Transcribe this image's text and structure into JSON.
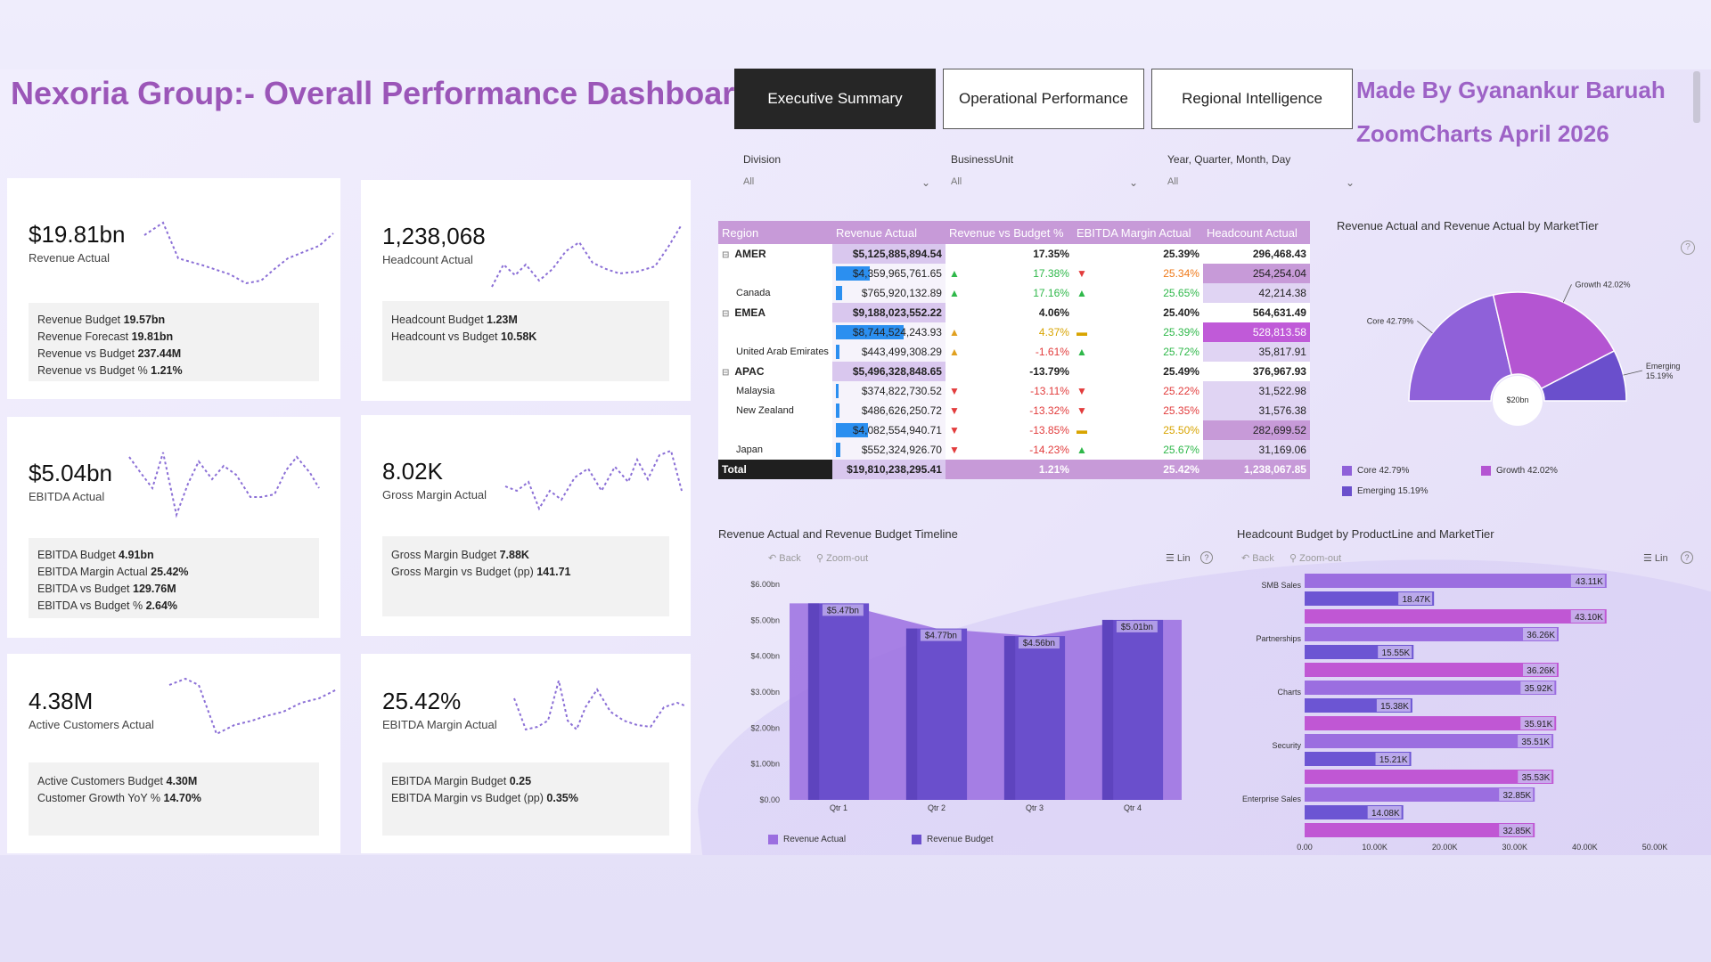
{
  "header": {
    "title": "Nexoria Group:- Overall Performance Dashboard",
    "tabs": [
      {
        "label": "Executive Summary",
        "active": true
      },
      {
        "label": "Operational Performance",
        "active": false
      },
      {
        "label": "Regional Intelligence",
        "active": false
      }
    ],
    "made_by": "Made By Gyanankur Baruah",
    "event": "ZoomCharts April 2026"
  },
  "slicers": [
    {
      "label": "Division",
      "value": "All"
    },
    {
      "label": "BusinessUnit",
      "value": "All"
    },
    {
      "label": "Year, Quarter, Month, Day",
      "value": "All"
    }
  ],
  "kpis": {
    "revenue": {
      "value": "$19.81bn",
      "label": "Revenue Actual",
      "details": [
        [
          "Revenue Budget ",
          "19.57bn"
        ],
        [
          "Revenue Forecast ",
          "19.81bn"
        ],
        [
          "Revenue vs Budget ",
          "237.44M"
        ],
        [
          "Revenue vs Budget % ",
          "1.21%"
        ]
      ]
    },
    "headcount": {
      "value": "1,238,068",
      "label": "Headcount Actual",
      "details": [
        [
          "Headcount Budget ",
          "1.23M"
        ],
        [
          "Headcount vs Budget ",
          "10.58K"
        ]
      ]
    },
    "ebitda": {
      "value": "$5.04bn",
      "label": "EBITDA Actual",
      "details": [
        [
          "EBITDA Budget ",
          "4.91bn"
        ],
        [
          "EBITDA Margin Actual ",
          "25.42%"
        ],
        [
          "EBITDA vs Budget ",
          "129.76M"
        ],
        [
          "EBITDA vs Budget % ",
          "2.64%"
        ]
      ]
    },
    "gross_margin": {
      "value": "8.02K",
      "label": "Gross Margin Actual",
      "details": [
        [
          "Gross Margin Budget ",
          "7.88K"
        ],
        [
          "Gross Margin vs Budget (pp) ",
          "141.71"
        ]
      ]
    },
    "customers": {
      "value": "4.38M",
      "label": "Active Customers Actual",
      "details": [
        [
          "Active Customers Budget ",
          "4.30M"
        ],
        [
          "Customer Growth YoY % ",
          "14.70%"
        ]
      ]
    },
    "ebitda_margin": {
      "value": "25.42%",
      "label": "EBITDA Margin Actual",
      "details": [
        [
          "EBITDA Margin Budget ",
          "0.25"
        ],
        [
          "EBITDA Margin vs Budget (pp) ",
          "0.35%"
        ]
      ]
    }
  },
  "matrix": {
    "columns": [
      "Region",
      "Revenue Actual",
      "Revenue vs Budget %",
      "EBITDA Margin Actual",
      "Headcount Actual"
    ],
    "rows": [
      {
        "name": "AMER",
        "group": true,
        "rev": "$5,125,885,894.54",
        "rvb": "17.35%",
        "ebm": "25.39%",
        "hc": "296,468.43"
      },
      {
        "name": "",
        "rev": "$4,359,965,761.65",
        "bar": 0.5,
        "rvb": "17.38%",
        "rvb_icon": "up",
        "ebm": "25.34%",
        "ebm_icon": "down",
        "ebm_color": "#ef7a1a",
        "hc": "254,254.04",
        "hc_level": 0.48
      },
      {
        "name": "Canada",
        "rev": "$765,920,132.89",
        "bar": 0.09,
        "rvb": "17.16%",
        "rvb_icon": "up",
        "ebm": "25.65%",
        "ebm_icon": "up",
        "ebm_color": "#2fb84a",
        "hc": "42,214.38",
        "hc_level": 0.08
      },
      {
        "name": "EMEA",
        "group": true,
        "rev": "$9,188,023,552.22",
        "rvb": "4.06%",
        "ebm": "25.40%",
        "hc": "564,631.49"
      },
      {
        "name": "",
        "rev": "$8,744,524,243.93",
        "bar": 1.0,
        "rvb": "4.37%",
        "rvb_icon": "warn",
        "ebm": "25.39%",
        "ebm_icon": "flat",
        "ebm_color": "#2fb84a",
        "hc": "528,813.58",
        "hc_level": 1.0
      },
      {
        "name": "United Arab Emirates",
        "rev": "$443,499,308.29",
        "bar": 0.05,
        "rvb": "-1.61%",
        "rvb_icon": "warn",
        "ebm": "25.72%",
        "ebm_icon": "up",
        "ebm_color": "#2fb84a",
        "hc": "35,817.91",
        "hc_level": 0.07
      },
      {
        "name": "APAC",
        "group": true,
        "rev": "$5,496,328,848.65",
        "rvb": "-13.79%",
        "ebm": "25.49%",
        "hc": "376,967.93"
      },
      {
        "name": "Malaysia",
        "rev": "$374,822,730.52",
        "bar": 0.04,
        "rvb": "-13.11%",
        "rvb_icon": "down",
        "ebm": "25.22%",
        "ebm_icon": "down",
        "ebm_color": "#e23c3c",
        "hc": "31,522.98",
        "hc_level": 0.06
      },
      {
        "name": "New Zealand",
        "rev": "$486,626,250.72",
        "bar": 0.05,
        "rvb": "-13.32%",
        "rvb_icon": "down",
        "ebm": "25.35%",
        "ebm_icon": "down",
        "ebm_color": "#e23c3c",
        "hc": "31,576.38",
        "hc_level": 0.06
      },
      {
        "name": "",
        "rev": "$4,082,554,940.71",
        "bar": 0.47,
        "rvb": "-13.85%",
        "rvb_icon": "down",
        "ebm": "25.50%",
        "ebm_icon": "flat",
        "ebm_color": "#d8a400",
        "hc": "282,699.52",
        "hc_level": 0.53
      },
      {
        "name": "Japan",
        "rev": "$552,324,926.70",
        "bar": 0.06,
        "rvb": "-14.23%",
        "rvb_icon": "down",
        "ebm": "25.67%",
        "ebm_icon": "up",
        "ebm_color": "#2fb84a",
        "hc": "31,169.06",
        "hc_level": 0.06
      }
    ],
    "total": {
      "name": "Total",
      "rev": "$19,810,238,295.41",
      "rvb": "1.21%",
      "ebm": "25.42%",
      "hc": "1,238,067.85"
    }
  },
  "pie": {
    "title": "Revenue Actual and Revenue Actual by MarketTier",
    "center": "$20bn",
    "colors": {
      "Core": "#8f61d9",
      "Growth": "#b455d2",
      "Emerging": "#6a4fcc"
    }
  },
  "timeline": {
    "title": "Revenue Actual and Revenue Budget Timeline",
    "back": "Back",
    "zoom": "Zoom-out",
    "lin": "Lin",
    "legend": [
      "Revenue Actual",
      "Revenue Budget"
    ]
  },
  "headcount_chart": {
    "title": "Headcount Budget by ProductLine and MarketTier",
    "back": "Back",
    "zoom": "Zoom-out",
    "lin": "Lin"
  },
  "chart_data": [
    {
      "type": "pie",
      "title": "Revenue Actual and Revenue Actual by MarketTier",
      "categories": [
        "Core",
        "Growth",
        "Emerging"
      ],
      "values": [
        42.79,
        42.02,
        15.19
      ],
      "labels": [
        "Core 42.79%",
        "Growth 42.02%",
        "Emerging 15.19%"
      ],
      "center_label": "$20bn",
      "legend": "bottom-left"
    },
    {
      "type": "bar",
      "title": "Revenue Actual and Revenue Budget Timeline",
      "categories": [
        "Qtr 1",
        "Qtr 2",
        "Qtr 3",
        "Qtr 4"
      ],
      "series": [
        {
          "name": "Revenue Actual",
          "values": [
            5.47,
            4.77,
            4.56,
            5.01
          ]
        },
        {
          "name": "Revenue Budget",
          "values": [
            5.47,
            4.77,
            4.56,
            5.01
          ]
        }
      ],
      "data_labels": [
        "$5.47bn",
        "$4.77bn",
        "$4.56bn",
        "$5.01bn"
      ],
      "ylim": [
        0,
        6
      ],
      "yticks": [
        "$0.00",
        "$1.00bn",
        "$2.00bn",
        "$3.00bn",
        "$4.00bn",
        "$5.00bn",
        "$6.00bn"
      ],
      "legend": "bottom"
    },
    {
      "type": "bar",
      "title": "Headcount Budget by ProductLine and MarketTier",
      "orientation": "horizontal",
      "categories": [
        "SMB Sales",
        "Partnerships",
        "Charts",
        "Security",
        "Enterprise Sales"
      ],
      "bars": [
        {
          "value": 43.11,
          "label": "43.11K",
          "color": "#9b6ee0"
        },
        {
          "value": 18.47,
          "label": "18.47K",
          "color": "#6c55d3",
          "category": "SMB Sales"
        },
        {
          "value": 43.1,
          "label": "43.10K",
          "color": "#c057d4"
        },
        {
          "value": 36.26,
          "label": "36.26K",
          "color": "#9b6ee0"
        },
        {
          "value": 15.55,
          "label": "15.55K",
          "color": "#6c55d3",
          "category": "Partnerships"
        },
        {
          "value": 36.26,
          "label": "36.26K",
          "color": "#c057d4"
        },
        {
          "value": 35.92,
          "label": "35.92K",
          "color": "#9b6ee0"
        },
        {
          "value": 15.38,
          "label": "15.38K",
          "color": "#6c55d3",
          "category": "Charts"
        },
        {
          "value": 35.91,
          "label": "35.91K",
          "color": "#c057d4"
        },
        {
          "value": 35.51,
          "label": "35.51K",
          "color": "#9b6ee0"
        },
        {
          "value": 15.21,
          "label": "15.21K",
          "color": "#6c55d3",
          "category": "Security"
        },
        {
          "value": 35.53,
          "label": "35.53K",
          "color": "#c057d4"
        },
        {
          "value": 32.85,
          "label": "32.85K",
          "color": "#9b6ee0"
        },
        {
          "value": 14.08,
          "label": "14.08K",
          "color": "#6c55d3",
          "category": "Enterprise Sales"
        },
        {
          "value": 32.85,
          "label": "32.85K",
          "color": "#c057d4"
        }
      ],
      "xlim": [
        0,
        50
      ],
      "xticks": [
        "0.00",
        "10.00K",
        "20.00K",
        "30.00K",
        "40.00K",
        "50.00K"
      ]
    }
  ]
}
